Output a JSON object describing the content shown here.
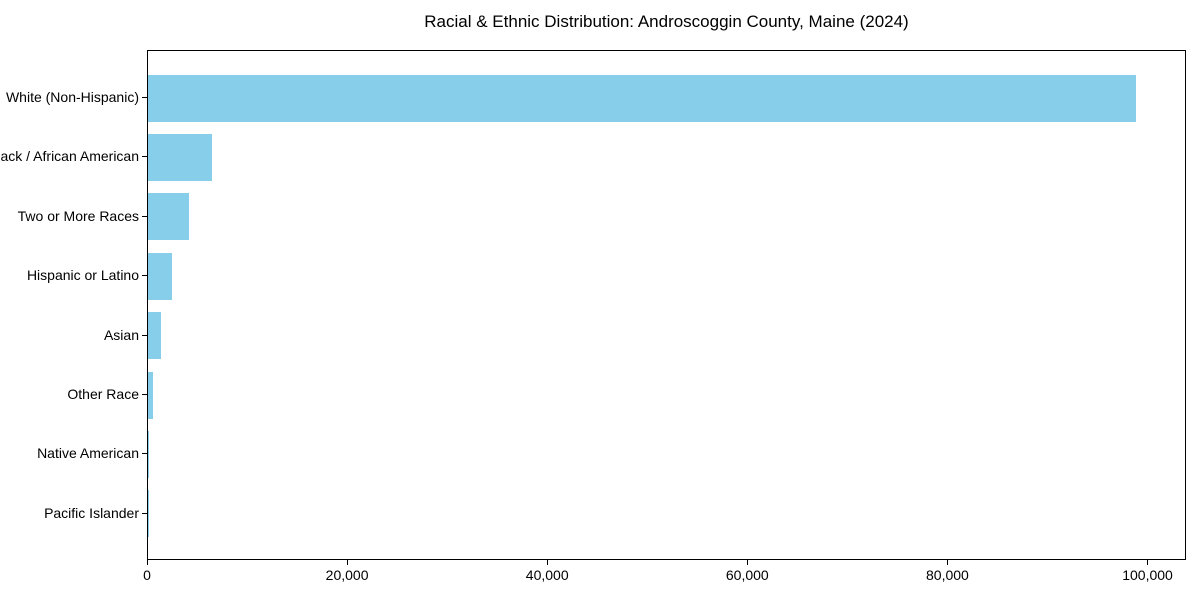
{
  "chart_data": {
    "type": "bar",
    "orientation": "horizontal",
    "title": "Racial & Ethnic Distribution: Androscoggin County, Maine (2024)",
    "categories": [
      "White (Non-Hispanic)",
      "Black / African American",
      "Two or More Races",
      "Hispanic or Latino",
      "Asian",
      "Other Race",
      "Native American",
      "Pacific Islander"
    ],
    "values": [
      98900,
      6400,
      4100,
      2400,
      1300,
      500,
      100,
      40
    ],
    "xlabel": "",
    "ylabel": "",
    "xlim": [
      0,
      103845
    ],
    "xticks": [
      0,
      20000,
      40000,
      60000,
      80000,
      100000
    ],
    "xtick_labels": [
      "0",
      "20,000",
      "40,000",
      "60,000",
      "80,000",
      "100,000"
    ],
    "bar_color": "#87CEEB",
    "axis_color": "#000000",
    "text_color": "#000000",
    "background_color": "#ffffff",
    "grid": false,
    "legend": null
  }
}
